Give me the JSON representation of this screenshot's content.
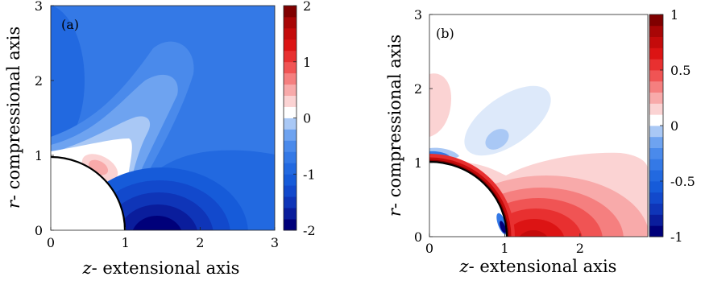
{
  "chart_data": [
    {
      "type": "heatmap",
      "panel_label": "(a)",
      "xlabel_italic": "z",
      "xlabel_rest": "- extensional axis",
      "ylabel_italic": "r",
      "ylabel_rest": "- compressional axis",
      "xlim": [
        0,
        3
      ],
      "ylim": [
        0,
        3
      ],
      "x_ticks": [
        "0",
        "1",
        "2",
        "3"
      ],
      "y_ticks": [
        "0",
        "1",
        "2",
        "3"
      ],
      "colorbar": {
        "range": [
          -2,
          2
        ],
        "ticks": [
          "2",
          "1",
          "0",
          "-1",
          "-2"
        ],
        "levels": 20,
        "colors": [
          "#00007a",
          "#0a1d9c",
          "#0f35b8",
          "#1249cc",
          "#165bd9",
          "#2269e0",
          "#3479e6",
          "#4a8aeb",
          "#6ea3f0",
          "#a9c8f5",
          "#ffffff",
          "#fbd3d3",
          "#f8aaaa",
          "#f57f7f",
          "#f05454",
          "#e83030",
          "#dc1414",
          "#c40b0b",
          "#a80606",
          "#800000"
        ]
      },
      "regions": [
        {
          "label": "background",
          "value": -0.85
        },
        {
          "label": "upper-left lobe",
          "value": -1.1
        },
        {
          "label": "near-axis light band",
          "value": -0.3
        },
        {
          "label": "positive pocket",
          "value": 0.4
        },
        {
          "label": "extensional minimum",
          "value": -2.0
        }
      ]
    },
    {
      "type": "heatmap",
      "panel_label": "(b)",
      "xlabel_italic": "z",
      "xlabel_rest": "- extensional axis",
      "ylabel_italic": "r",
      "ylabel_rest": "- compressional axis",
      "xlim": [
        0,
        2.9
      ],
      "ylim": [
        0,
        3
      ],
      "x_ticks": [
        "0",
        "1",
        "2"
      ],
      "y_ticks": [
        "0",
        "1",
        "2",
        "3"
      ],
      "colorbar": {
        "range": [
          -1,
          1
        ],
        "ticks": [
          "1",
          "0.5",
          "0",
          "-0.5",
          "-1"
        ],
        "levels": 20,
        "colors": [
          "#00007a",
          "#0a1d9c",
          "#0f35b8",
          "#1249cc",
          "#165bd9",
          "#2269e0",
          "#3479e6",
          "#4a8aeb",
          "#6ea3f0",
          "#a9c8f5",
          "#ffffff",
          "#fbd3d3",
          "#f8aaaa",
          "#f57f7f",
          "#f05454",
          "#e83030",
          "#dc1414",
          "#c40b0b",
          "#a80606",
          "#800000"
        ]
      },
      "regions": [
        {
          "label": "upper-left positive lobe",
          "value": 0.15
        },
        {
          "label": "central negative lobe",
          "value": -0.2
        },
        {
          "label": "surface band",
          "value": 0.9
        },
        {
          "label": "extensional maximum",
          "value": 1.0
        }
      ]
    }
  ]
}
